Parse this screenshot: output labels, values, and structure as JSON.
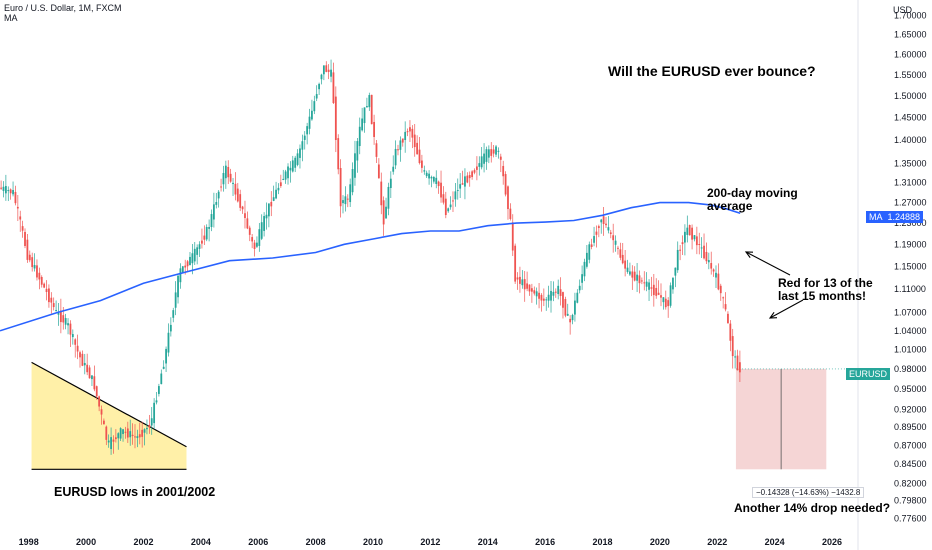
{
  "header": {
    "symbol_line": "Euro / U.S. Dollar, 1M, FXCM",
    "indicator": "MA",
    "unit": "USD"
  },
  "annotations": {
    "headline": "Will the EURUSD ever bounce?",
    "ma_label_1": "200-day moving",
    "ma_label_2": "average",
    "red_note_1": "Red for 13 of the",
    "red_note_2": "last 15 months!",
    "lows_note": "EURUSD lows in 2001/2002",
    "drop_note": "Another 14% drop needed?",
    "measure_label": "−0.14328 (−14.63%) −1432.8"
  },
  "tags": {
    "ma_name": "MA",
    "ma_value": "1.24888",
    "price_name": "EURUSD"
  },
  "colors": {
    "up": "#26a69a",
    "down": "#ef5350",
    "ma_line": "#2962ff",
    "triangle_fill": "#fff0a8",
    "measure_fill": "#f5d5d5",
    "price_tag": "#26a69a",
    "ma_tag": "#2962ff"
  },
  "chart_data": {
    "type": "line",
    "title": "Euro / U.S. Dollar, 1M, FXCM",
    "xlabel": "",
    "ylabel": "USD",
    "y_scale": "log",
    "ylim": [
      0.76,
      1.72
    ],
    "xlim": [
      1997.0,
      2026.8
    ],
    "x_ticks": [
      "1998",
      "2000",
      "2002",
      "2004",
      "2006",
      "2008",
      "2010",
      "2012",
      "2014",
      "2016",
      "2018",
      "2020",
      "2022",
      "2024",
      "2026"
    ],
    "y_ticks": [
      "0.77600",
      "0.79800",
      "0.82000",
      "0.84500",
      "0.87000",
      "0.89500",
      "0.92000",
      "0.95000",
      "0.98000",
      "1.01000",
      "1.04000",
      "1.07000",
      "1.11000",
      "1.15000",
      "1.19000",
      "1.23000",
      "1.27000",
      "1.31000",
      "1.35000",
      "1.40000",
      "1.45000",
      "1.50000",
      "1.55000",
      "1.60000",
      "1.65000",
      "1.70000"
    ],
    "series": [
      {
        "name": "EURUSD",
        "x": [
          1997.0,
          1997.5,
          1998.0,
          1998.5,
          1999.0,
          1999.4,
          1999.8,
          2000.3,
          2000.8,
          2001.3,
          2001.8,
          2002.3,
          2002.8,
          2003.3,
          2003.8,
          2004.3,
          2004.9,
          2005.4,
          2005.9,
          2006.4,
          2006.9,
          2007.4,
          2007.9,
          2008.3,
          2008.6,
          2008.9,
          2009.2,
          2009.6,
          2009.9,
          2010.4,
          2010.8,
          2011.3,
          2011.8,
          2012.3,
          2012.6,
          2013.0,
          2013.5,
          2014.0,
          2014.4,
          2014.8,
          2015.0,
          2015.5,
          2016.0,
          2016.5,
          2016.9,
          2017.5,
          2018.0,
          2018.4,
          2018.9,
          2019.5,
          2020.0,
          2020.3,
          2020.7,
          2021.0,
          2021.5,
          2022.0,
          2022.3,
          2022.6,
          2022.8
        ],
        "values": [
          1.3,
          1.29,
          1.17,
          1.12,
          1.07,
          1.05,
          1.0,
          0.96,
          0.87,
          0.89,
          0.88,
          0.9,
          1.0,
          1.14,
          1.17,
          1.22,
          1.34,
          1.27,
          1.18,
          1.26,
          1.32,
          1.36,
          1.46,
          1.57,
          1.55,
          1.27,
          1.28,
          1.43,
          1.5,
          1.23,
          1.37,
          1.43,
          1.33,
          1.31,
          1.25,
          1.3,
          1.33,
          1.37,
          1.38,
          1.25,
          1.13,
          1.11,
          1.09,
          1.11,
          1.05,
          1.17,
          1.24,
          1.2,
          1.14,
          1.12,
          1.1,
          1.08,
          1.18,
          1.22,
          1.18,
          1.13,
          1.08,
          1.0,
          0.98
        ]
      },
      {
        "name": "MA",
        "x": [
          1997.0,
          1999.0,
          2000.5,
          2002.0,
          2003.5,
          2005.0,
          2006.5,
          2008.0,
          2009.0,
          2010.0,
          2011.0,
          2012.0,
          2013.0,
          2014.0,
          2015.0,
          2016.0,
          2017.0,
          2018.0,
          2019.0,
          2020.0,
          2021.0,
          2021.8,
          2022.3,
          2022.8
        ],
        "values": [
          1.04,
          1.07,
          1.09,
          1.12,
          1.14,
          1.16,
          1.165,
          1.175,
          1.19,
          1.2,
          1.21,
          1.215,
          1.215,
          1.225,
          1.23,
          1.232,
          1.235,
          1.245,
          1.26,
          1.27,
          1.27,
          1.265,
          1.258,
          1.249
        ]
      }
    ]
  }
}
